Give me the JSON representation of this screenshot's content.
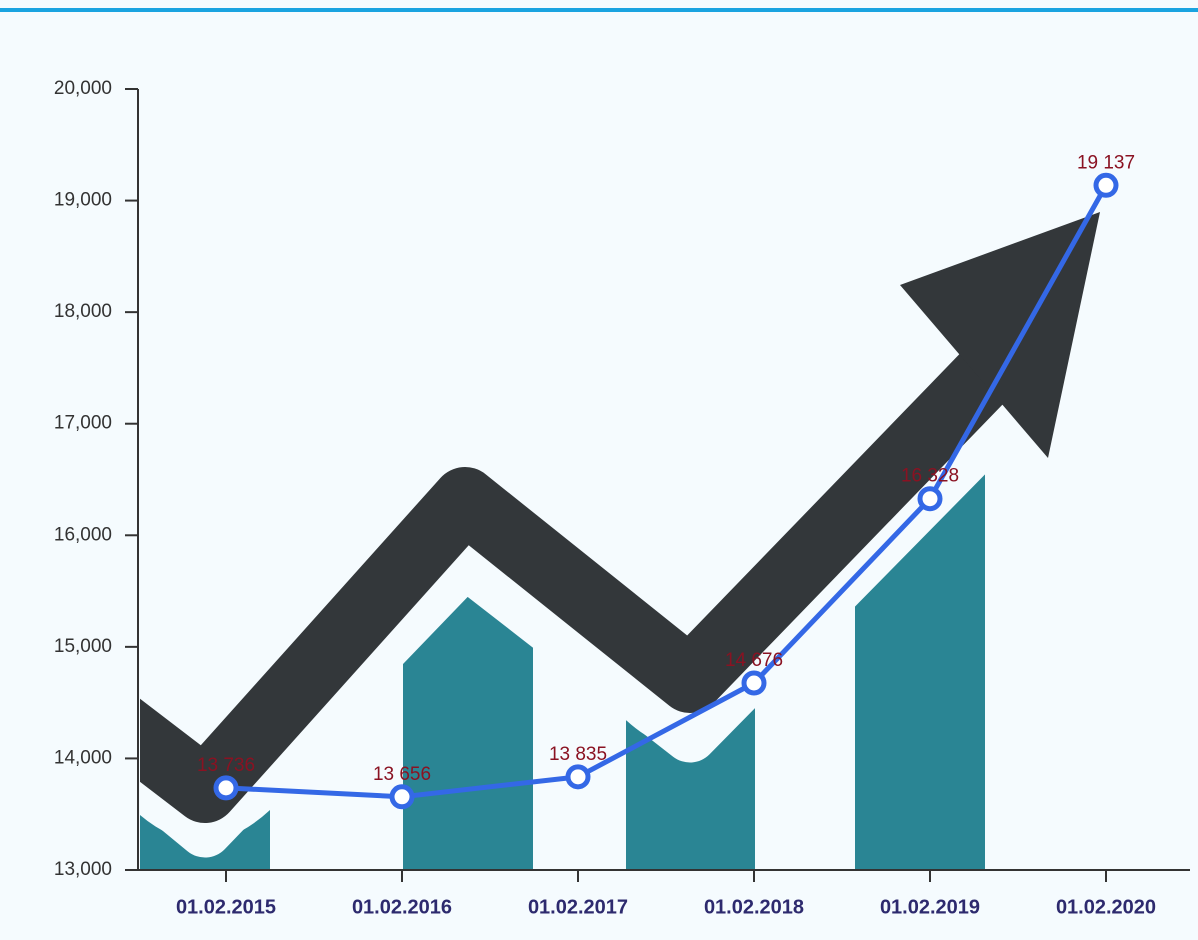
{
  "chart_data": {
    "type": "line",
    "categories": [
      "01.02.2015",
      "01.02.2016",
      "01.02.2017",
      "01.02.2018",
      "01.02.2019",
      "01.02.2020"
    ],
    "series": [
      {
        "name": null,
        "color": "#3468e6",
        "values": [
          13736,
          13656,
          13835,
          14676,
          16328,
          19137
        ],
        "value_labels": [
          "13 736",
          "13 656",
          "13 835",
          "14 676",
          "16 328",
          "19 137"
        ]
      }
    ],
    "ylim": [
      13000,
      20000
    ],
    "yticks": [
      {
        "value": 13000,
        "label": "13,000"
      },
      {
        "value": 14000,
        "label": "14,000"
      },
      {
        "value": 15000,
        "label": "15,000"
      },
      {
        "value": 16000,
        "label": "16,000"
      },
      {
        "value": 17000,
        "label": "17,000"
      },
      {
        "value": 18000,
        "label": "18,000"
      },
      {
        "value": 19000,
        "label": "19,000"
      },
      {
        "value": 20000,
        "label": "20,000"
      }
    ]
  }
}
